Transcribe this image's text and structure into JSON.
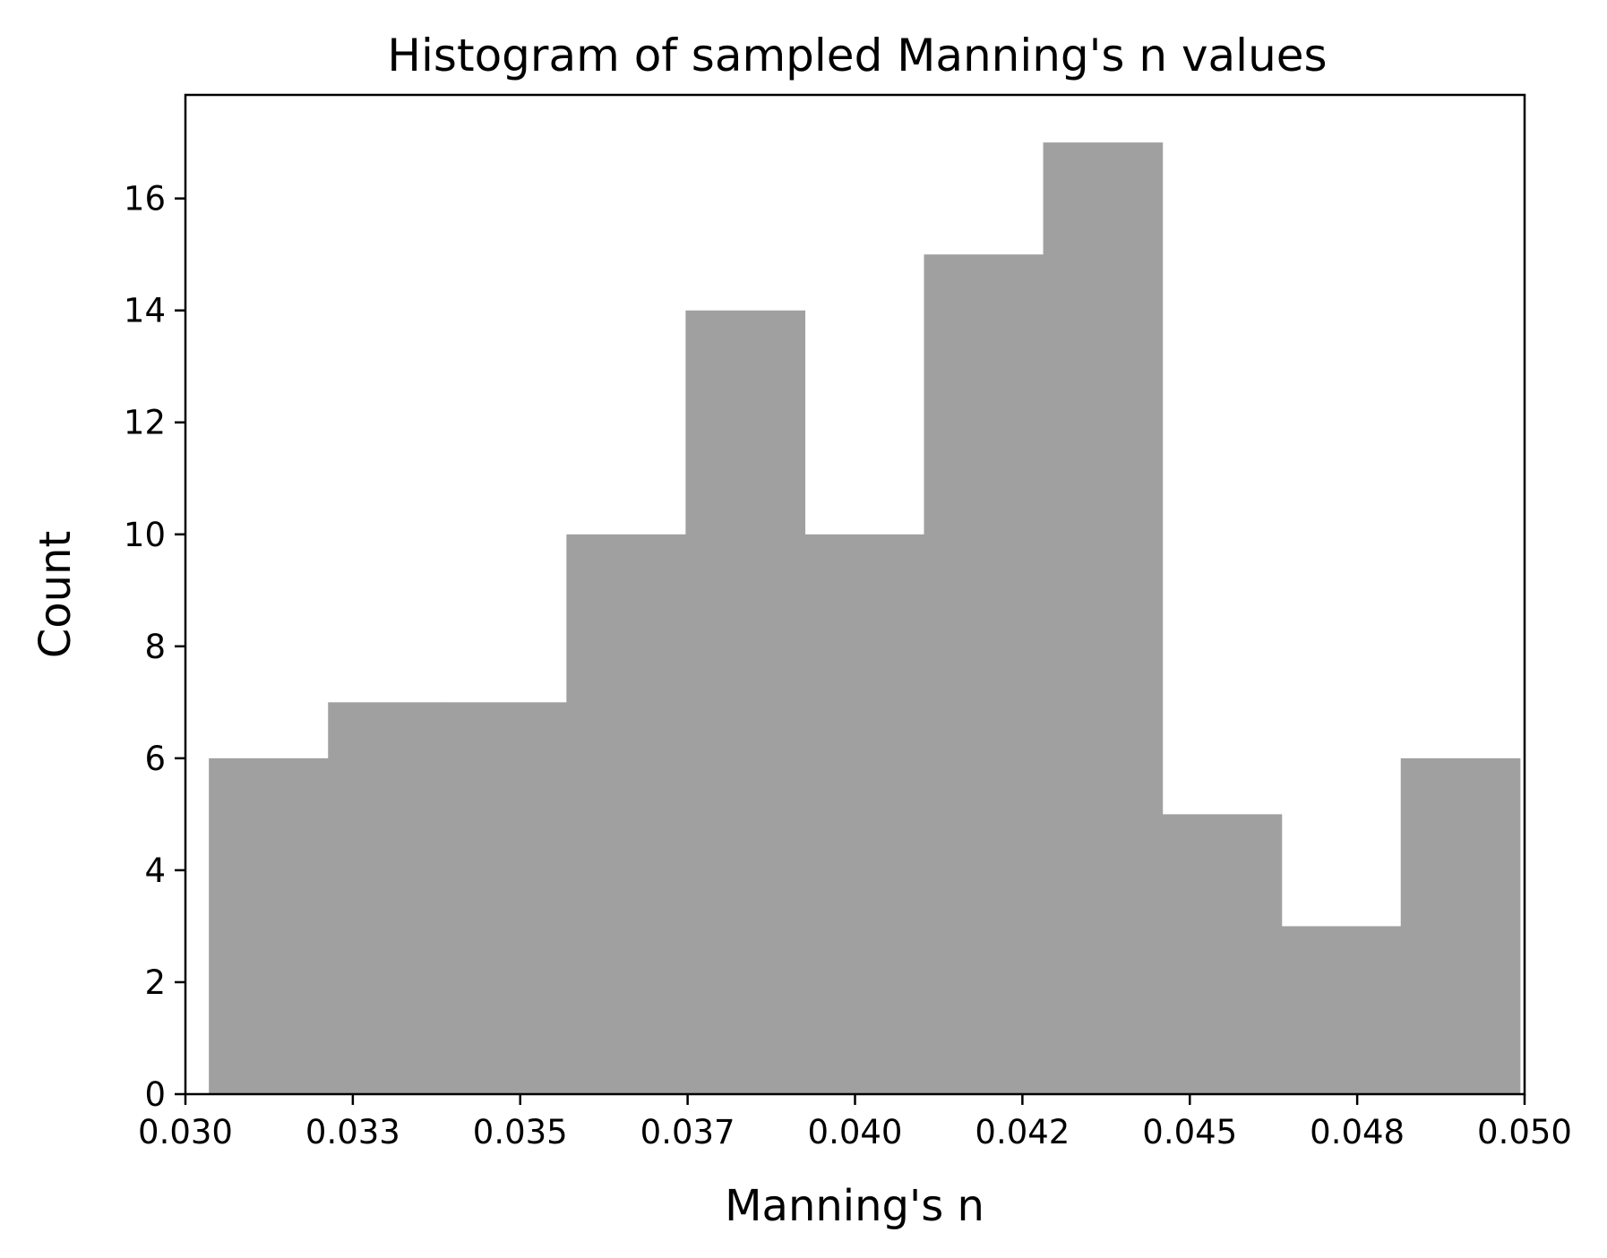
{
  "chart_data": {
    "type": "bar",
    "title": "Histogram of sampled Manning's n values",
    "xlabel": "Manning's n",
    "ylabel": "Count",
    "xlim": [
      0.03,
      0.05
    ],
    "ylim": [
      0,
      17.85
    ],
    "x_ticks": [
      0.03,
      0.0325,
      0.035,
      0.0375,
      0.04,
      0.0425,
      0.045,
      0.0475,
      0.05
    ],
    "x_tick_labels": [
      "0.030",
      "0.033",
      "0.035",
      "0.037",
      "0.040",
      "0.042",
      "0.045",
      "0.048",
      "0.050"
    ],
    "y_ticks": [
      0,
      2,
      4,
      6,
      8,
      10,
      12,
      14,
      16
    ],
    "y_tick_labels": [
      "0",
      "2",
      "4",
      "6",
      "8",
      "10",
      "12",
      "14",
      "16"
    ],
    "bin_edges": [
      0.03035,
      0.03213,
      0.03391,
      0.03569,
      0.03747,
      0.03925,
      0.04103,
      0.04281,
      0.04459,
      0.04637,
      0.04815,
      0.04993
    ],
    "values": [
      6,
      7,
      7,
      10,
      14,
      10,
      15,
      17,
      5,
      3,
      6
    ],
    "bar_color": "#a0a0a0",
    "axis_color": "#000000",
    "grid": false
  }
}
